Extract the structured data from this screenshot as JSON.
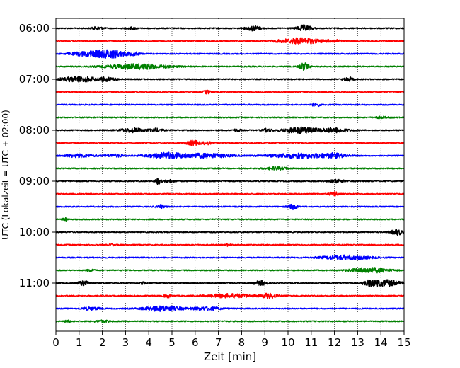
{
  "chart_data": {
    "type": "line",
    "title": "",
    "xlabel": "Zeit  [min]",
    "ylabel": "UTC (Lokalzeit = UTC + 02:00)",
    "xlim": [
      0,
      15
    ],
    "x_ticks": [
      0,
      1,
      2,
      3,
      4,
      5,
      6,
      7,
      8,
      9,
      10,
      11,
      12,
      13,
      14,
      15
    ],
    "y_ticks": [
      "06:00",
      "07:00",
      "08:00",
      "09:00",
      "10:00",
      "11:00"
    ],
    "y_tick_rows": [
      0,
      4,
      8,
      12,
      16,
      20
    ],
    "grid": "vertical-dotted",
    "trace_minutes": 15,
    "trace_colors": [
      "#000000",
      "#ff0000",
      "#0000ff",
      "#008000"
    ],
    "traces": [
      {
        "start": "06:00",
        "color": "#000000",
        "events": [
          [
            1.8,
            0.55,
            0.25
          ],
          [
            3.3,
            0.4,
            0.2
          ],
          [
            8.5,
            0.9,
            0.3
          ],
          [
            10.7,
            1.2,
            0.3
          ]
        ]
      },
      {
        "start": "06:15",
        "color": "#ff0000",
        "events": [
          [
            10.5,
            1.1,
            0.9
          ],
          [
            12.0,
            0.4,
            0.4
          ]
        ]
      },
      {
        "start": "06:30",
        "color": "#0000ff",
        "events": [
          [
            1.2,
            0.7,
            0.6
          ],
          [
            2.3,
            1.6,
            0.7
          ],
          [
            3.4,
            0.5,
            0.2
          ]
        ]
      },
      {
        "start": "06:45",
        "color": "#008000",
        "events": [
          [
            3.5,
            1.0,
            1.3
          ],
          [
            10.7,
            1.4,
            0.2
          ]
        ]
      },
      {
        "start": "07:00",
        "color": "#000000",
        "events": [
          [
            1.0,
            1.0,
            0.8
          ],
          [
            2.2,
            0.6,
            0.4
          ],
          [
            12.6,
            0.8,
            0.2
          ]
        ]
      },
      {
        "start": "07:15",
        "color": "#ff0000",
        "events": [
          [
            6.5,
            0.7,
            0.15
          ]
        ]
      },
      {
        "start": "07:30",
        "color": "#0000ff",
        "events": [
          [
            11.2,
            0.8,
            0.15
          ]
        ]
      },
      {
        "start": "07:45",
        "color": "#008000",
        "events": [
          [
            14.0,
            0.3,
            0.3
          ]
        ]
      },
      {
        "start": "08:00",
        "color": "#000000",
        "events": [
          [
            3.3,
            0.8,
            0.5
          ],
          [
            4.3,
            0.6,
            0.3
          ],
          [
            7.8,
            0.5,
            0.15
          ],
          [
            9.1,
            0.6,
            0.2
          ],
          [
            10.5,
            1.2,
            0.7
          ],
          [
            12.0,
            0.9,
            0.6
          ]
        ]
      },
      {
        "start": "08:15",
        "color": "#ff0000",
        "events": [
          [
            5.9,
            0.9,
            0.3
          ],
          [
            6.5,
            0.6,
            0.2
          ]
        ]
      },
      {
        "start": "08:30",
        "color": "#0000ff",
        "events": [
          [
            1.0,
            0.6,
            0.6
          ],
          [
            2.5,
            0.5,
            0.4
          ],
          [
            4.8,
            1.1,
            0.8
          ],
          [
            6.5,
            0.8,
            1.0
          ],
          [
            10.5,
            0.9,
            1.3
          ],
          [
            12.0,
            0.7,
            0.5
          ]
        ]
      },
      {
        "start": "08:45",
        "color": "#008000",
        "events": [
          [
            9.5,
            0.5,
            0.5
          ]
        ]
      },
      {
        "start": "09:00",
        "color": "#000000",
        "events": [
          [
            4.4,
            1.2,
            0.12
          ],
          [
            4.9,
            0.6,
            0.2
          ],
          [
            12.1,
            0.7,
            0.3
          ]
        ]
      },
      {
        "start": "09:15",
        "color": "#ff0000",
        "events": [
          [
            12.0,
            0.9,
            0.2
          ]
        ]
      },
      {
        "start": "09:30",
        "color": "#0000ff",
        "events": [
          [
            4.5,
            0.7,
            0.2
          ],
          [
            10.2,
            1.0,
            0.2
          ]
        ]
      },
      {
        "start": "09:45",
        "color": "#008000",
        "events": [
          [
            0.4,
            0.6,
            0.1
          ]
        ]
      },
      {
        "start": "10:00",
        "color": "#000000",
        "events": [
          [
            14.7,
            1.0,
            0.3
          ]
        ]
      },
      {
        "start": "10:15",
        "color": "#ff0000",
        "events": [
          [
            2.4,
            0.4,
            0.1
          ],
          [
            7.4,
            0.4,
            0.1
          ]
        ]
      },
      {
        "start": "10:30",
        "color": "#0000ff",
        "events": [
          [
            12.5,
            0.8,
            1.0
          ]
        ]
      },
      {
        "start": "10:45",
        "color": "#008000",
        "events": [
          [
            1.5,
            0.5,
            0.15
          ],
          [
            13.5,
            1.0,
            0.8
          ]
        ]
      },
      {
        "start": "11:00",
        "color": "#000000",
        "events": [
          [
            1.2,
            0.9,
            0.25
          ],
          [
            3.7,
            0.5,
            0.15
          ],
          [
            8.8,
            0.8,
            0.3
          ],
          [
            13.5,
            0.8,
            0.3
          ],
          [
            14.2,
            1.2,
            0.6
          ]
        ]
      },
      {
        "start": "11:15",
        "color": "#ff0000",
        "events": [
          [
            4.8,
            0.7,
            0.15
          ],
          [
            7.5,
            0.7,
            1.0
          ],
          [
            9.2,
            1.0,
            0.3
          ]
        ]
      },
      {
        "start": "11:30",
        "color": "#0000ff",
        "events": [
          [
            1.5,
            0.5,
            0.4
          ],
          [
            4.6,
            1.0,
            0.8
          ],
          [
            6.5,
            0.6,
            0.6
          ]
        ]
      },
      {
        "start": "11:45",
        "color": "#008000",
        "events": [
          [
            0.5,
            0.6,
            0.1
          ],
          [
            2.0,
            0.4,
            0.3
          ]
        ]
      }
    ]
  }
}
